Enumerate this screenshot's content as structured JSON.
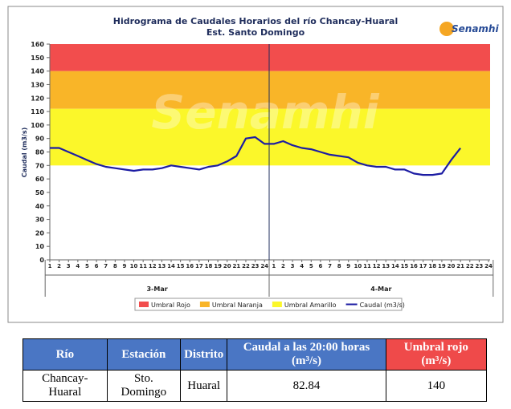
{
  "chart_data": {
    "type": "line",
    "title": "Hidrograma de Caudales Horarios del río Chancay-Huaral",
    "subtitle": "Est. Santo Domingo",
    "y_label": "Caudal  (m3/s)",
    "logo": "Senamhi",
    "categories": [
      "1",
      "2",
      "3",
      "4",
      "5",
      "6",
      "7",
      "8",
      "9",
      "10",
      "11",
      "12",
      "13",
      "14",
      "15",
      "16",
      "17",
      "18",
      "19",
      "20",
      "21",
      "22",
      "23",
      "24",
      "1",
      "2",
      "3",
      "4",
      "5",
      "6",
      "7",
      "8",
      "9",
      "10",
      "11",
      "12",
      "13",
      "14",
      "15",
      "16",
      "17",
      "18",
      "19",
      "20",
      "21",
      "22",
      "23",
      "24"
    ],
    "day_labels": [
      "3-Mar",
      "4-Mar"
    ],
    "bands": [
      {
        "name": "Umbral Rojo",
        "color": "#f24d4d",
        "lower": 140,
        "upper": 160
      },
      {
        "name": "Umbral Naranja",
        "color": "#f9b528",
        "lower": 112,
        "upper": 140
      },
      {
        "name": "Umbral Amarillo",
        "color": "#fbf72a",
        "lower": 70,
        "upper": 112
      }
    ],
    "series": [
      {
        "name": "Caudal (m3/s)",
        "color": "#1c1ca3",
        "values": [
          83,
          83,
          80,
          77,
          74,
          71,
          69,
          68,
          67,
          66,
          67,
          67,
          68,
          70,
          69,
          68,
          67,
          69,
          70,
          73,
          77,
          90,
          91,
          86,
          86,
          88,
          85,
          83,
          82,
          80,
          78,
          77,
          76,
          72,
          70,
          69,
          69,
          67,
          67,
          64,
          63,
          63,
          64,
          74,
          82.84,
          null,
          null,
          null
        ]
      }
    ],
    "ylim": [
      0,
      160
    ],
    "yticks": [
      0,
      10,
      20,
      30,
      40,
      50,
      60,
      70,
      80,
      90,
      100,
      110,
      120,
      130,
      140,
      150,
      160
    ]
  },
  "table": {
    "header": [
      "Río",
      "Estación",
      "Distrito",
      "Caudal a las 20:00 horas (m³/s)",
      "Umbral rojo (m³/s)"
    ],
    "rows": [
      [
        "Chancay-Huaral",
        "Sto. Domingo",
        "Huaral",
        82.84,
        140
      ]
    ]
  }
}
